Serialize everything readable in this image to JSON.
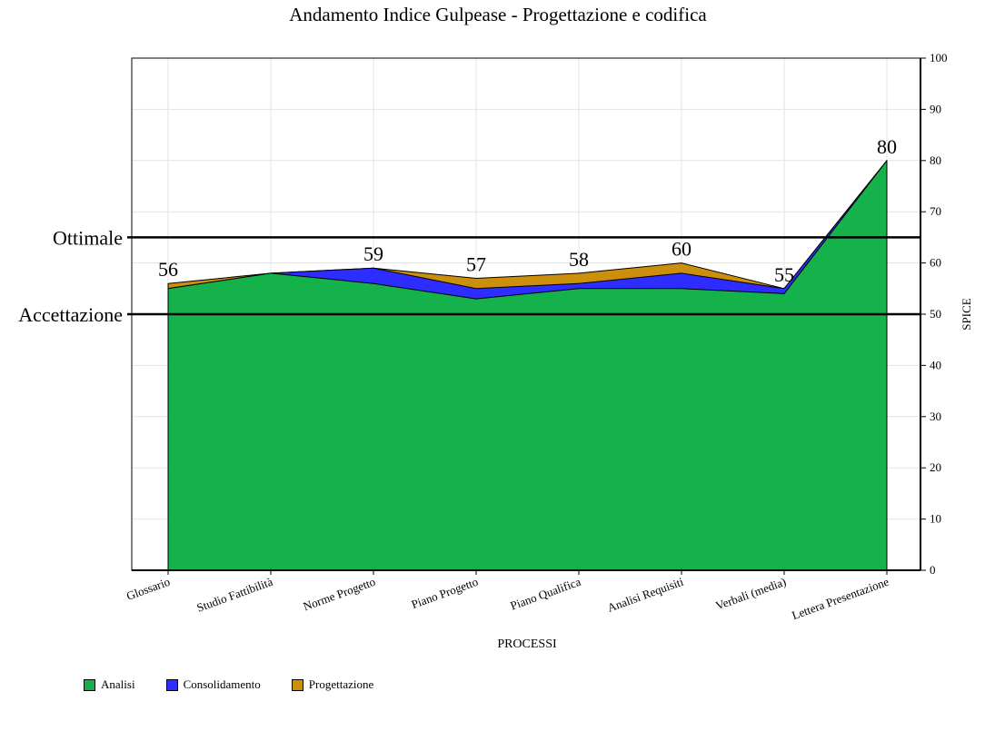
{
  "chart_data": {
    "type": "area",
    "title": "Andamento Indice Gulpease - Progettazione e codifica",
    "xlabel": "PROCESSI",
    "ylabel": "SPICE",
    "ylim": [
      0,
      100
    ],
    "yticks": [
      0,
      10,
      20,
      30,
      40,
      50,
      60,
      70,
      80,
      90,
      100
    ],
    "grid": true,
    "legend_position": "bottom-left",
    "categories": [
      "Glossario",
      "Studio Fattibilità",
      "Norme Progetto",
      "Piano Progetto",
      "Piano Qualifica",
      "Analisi Requisiti",
      "Verbali (media)",
      "Lettera Presentazione"
    ],
    "series": [
      {
        "name": "Analisi",
        "color": "#15b14a",
        "values": [
          55,
          58,
          56,
          53,
          55,
          55,
          54,
          80
        ]
      },
      {
        "name": "Consolidamento",
        "color": "#2d2dff",
        "values": [
          55,
          58,
          59,
          55,
          56,
          58,
          55,
          80
        ]
      },
      {
        "name": "Progettazione",
        "color": "#cc8f0c",
        "values": [
          56,
          58,
          59,
          57,
          58,
          60,
          55,
          80
        ]
      }
    ],
    "data_labels": [
      "56",
      "",
      "59",
      "57",
      "58",
      "60",
      "55",
      "80"
    ],
    "reference_lines": [
      {
        "label": "Ottimale",
        "value": 65
      },
      {
        "label": "Accettazione",
        "value": 50
      }
    ]
  }
}
